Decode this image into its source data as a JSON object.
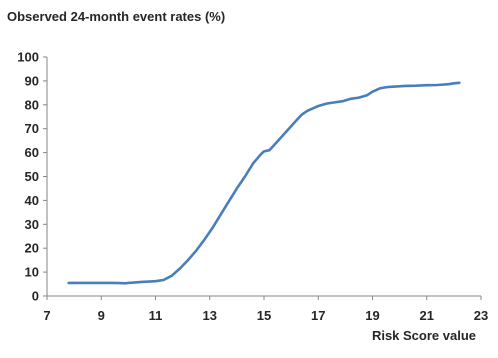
{
  "chart_data": {
    "type": "line",
    "title": "Observed 24-month event rates (%)",
    "xlabel": "Risk Score value",
    "ylabel": "",
    "xlim": [
      7,
      23
    ],
    "ylim": [
      0,
      100
    ],
    "x_ticks": [
      7,
      9,
      11,
      13,
      15,
      17,
      19,
      21,
      23
    ],
    "y_ticks": [
      0,
      10,
      20,
      30,
      40,
      50,
      60,
      70,
      80,
      90,
      100
    ],
    "grid": false,
    "line_color": "#4a7ebb",
    "series": [
      {
        "x": [
          7.8,
          8.5,
          9.0,
          9.5,
          9.9,
          10.0,
          10.5,
          11.0,
          11.3,
          11.6,
          11.9,
          12.2,
          12.5,
          12.8,
          13.1,
          13.4,
          13.7,
          14.0,
          14.3,
          14.6,
          14.9,
          15.0,
          15.2,
          15.4,
          15.6,
          15.8,
          16.0,
          16.2,
          16.4,
          16.6,
          16.8,
          17.0,
          17.3,
          17.6,
          17.9,
          18.2,
          18.5,
          18.8,
          19.0,
          19.3,
          19.6,
          19.9,
          20.2,
          20.6,
          21.0,
          21.4,
          21.8,
          22.0,
          22.2
        ],
        "y": [
          5.5,
          5.5,
          5.5,
          5.5,
          5.3,
          5.5,
          5.9,
          6.2,
          6.7,
          8.5,
          11.5,
          15.0,
          19.0,
          23.5,
          28.5,
          34.0,
          39.5,
          45.0,
          50.0,
          55.5,
          59.5,
          60.5,
          61.0,
          63.5,
          66.0,
          68.5,
          71.0,
          73.5,
          76.0,
          77.5,
          78.5,
          79.5,
          80.5,
          81.0,
          81.5,
          82.5,
          83.0,
          84.0,
          85.5,
          87.0,
          87.5,
          87.7,
          87.9,
          88.0,
          88.2,
          88.3,
          88.6,
          89.0,
          89.2
        ]
      }
    ]
  }
}
